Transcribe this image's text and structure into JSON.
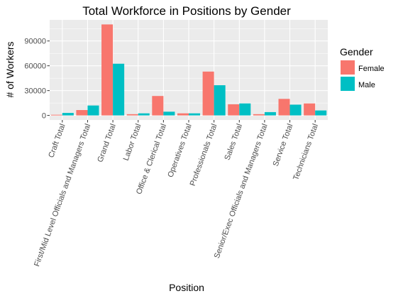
{
  "chart_data": {
    "type": "bar",
    "title": "Total Workforce in Positions by Gender",
    "xlabel": "Position",
    "ylabel": "# of Workers",
    "categories": [
      "Craft Total",
      "First/Mid Level Officials and Managers Total",
      "Grand Total",
      "Labor Total",
      "Office & Clerical Total",
      "Operatives Total",
      "Professionals Total",
      "Sales Total",
      "Senior/Exec Officials and Managers Total",
      "Service Total",
      "Technicians Total"
    ],
    "series": [
      {
        "name": "Female",
        "color": "#F8766D",
        "values": [
          800,
          6500,
          110000,
          1500,
          23500,
          2500,
          53000,
          13500,
          1500,
          20000,
          14500
        ]
      },
      {
        "name": "Male",
        "color": "#00BFC4",
        "values": [
          3000,
          12000,
          62500,
          2500,
          4500,
          2500,
          36500,
          14500,
          4000,
          13000,
          6000
        ]
      }
    ],
    "ylim": [
      -5500,
      115500
    ],
    "yticks": [
      0,
      30000,
      60000,
      90000
    ],
    "ytick_labels": [
      "0",
      "30000",
      "60000",
      "90000"
    ],
    "legend": {
      "title": "Gender",
      "position": "right"
    },
    "grid": true,
    "panel_color": "#EBEBEB"
  }
}
